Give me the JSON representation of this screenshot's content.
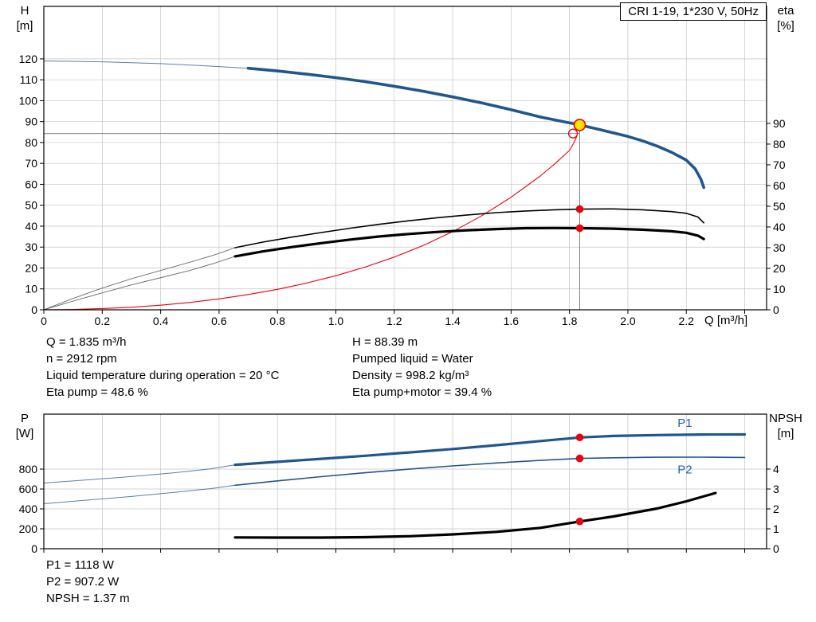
{
  "colors": {
    "curve_blue": "#20568c",
    "label_blue": "#2363ae",
    "red": "#e8000d",
    "marker_yellow": "#ffe600",
    "grid": "#c4c4c4",
    "ref_gray": "#707070",
    "black": "#000000"
  },
  "axis_labels": {
    "top_left": [
      "H",
      "[m]"
    ],
    "top_right": [
      "eta",
      "[%]"
    ],
    "x_axis": "Q [m³/h]",
    "bottom_left": [
      "P",
      "[W]"
    ],
    "bottom_right": [
      "NPSH",
      "[m]"
    ]
  },
  "info": {
    "left": [
      "Q = 1.835 m³/h",
      "n = 2912 rpm",
      "Liquid temperature during operation = 20 °C",
      "Eta pump = 48.6 %"
    ],
    "right": [
      "H = 88.39 m",
      "Pumped liquid = Water",
      "Density = 998.2 kg/m³",
      "Eta pump+motor = 39.4 %"
    ]
  },
  "results": [
    "P1 = 1118 W",
    "P2 = 907.2 W",
    "NPSH = 1.37 m"
  ],
  "chart_data": [
    {
      "id": "chart-top",
      "type": "line",
      "title": "CRI 1-19, 1*230 V, 50Hz",
      "x": {
        "label": "Q [m³/h]",
        "lim": [
          0,
          2.475
        ],
        "ticks": [
          0,
          0.2,
          0.4,
          0.6,
          0.8,
          1.0,
          1.2,
          1.4,
          1.6,
          1.8,
          2.0,
          2.2,
          2.4
        ],
        "tick_labels": [
          "0",
          "0.2",
          "0.4",
          "0.6",
          "0.8",
          "1.0",
          "1.2",
          "1.4",
          "1.6",
          "1.8",
          "2.0",
          "2.2",
          ""
        ],
        "grid": [
          0.2,
          0.4,
          0.6,
          0.8,
          1.0,
          1.2,
          1.4,
          1.6,
          1.8,
          2.0,
          2.2,
          2.4
        ]
      },
      "left": {
        "label": "H [m]",
        "lim": [
          0,
          145.1
        ],
        "ticks": [
          0,
          10,
          20,
          30,
          40,
          50,
          60,
          70,
          80,
          90,
          100,
          110,
          120
        ],
        "tick_labels": [
          "0",
          "10",
          "20",
          "30",
          "40",
          "50",
          "60",
          "70",
          "80",
          "90",
          "100",
          "110",
          "120"
        ]
      },
      "right": {
        "label": "eta [%]",
        "lim": [
          0,
          146.5
        ],
        "ticks": [
          0,
          10,
          20,
          30,
          40,
          50,
          60,
          70,
          80,
          90
        ],
        "tick_labels": [
          "0",
          "10",
          "20",
          "30",
          "40",
          "50",
          "60",
          "70",
          "80",
          "90"
        ]
      },
      "series": [
        {
          "name": "head-curve-lead",
          "axis": "left",
          "color": "#20568c",
          "width": 1,
          "opacity": 0.75,
          "points": [
            [
              0,
              119
            ],
            [
              0.2,
              118.6
            ],
            [
              0.4,
              117.7
            ],
            [
              0.55,
              116.7
            ],
            [
              0.7,
              115.5
            ]
          ]
        },
        {
          "name": "head-curve",
          "axis": "left",
          "color": "#20568c",
          "width": 3.6,
          "points": [
            [
              0.7,
              115.5
            ],
            [
              0.8,
              114.2
            ],
            [
              0.9,
              112.7
            ],
            [
              1.0,
              111.0
            ],
            [
              1.1,
              109.1
            ],
            [
              1.2,
              106.9
            ],
            [
              1.3,
              104.5
            ],
            [
              1.4,
              101.8
            ],
            [
              1.5,
              98.9
            ],
            [
              1.6,
              95.7
            ],
            [
              1.7,
              92.2
            ],
            [
              1.835,
              88.39
            ],
            [
              1.9,
              86.3
            ],
            [
              2.0,
              82.9
            ],
            [
              2.05,
              80.8
            ],
            [
              2.1,
              78.3
            ],
            [
              2.15,
              75.3
            ],
            [
              2.2,
              71.6
            ],
            [
              2.23,
              67.5
            ],
            [
              2.25,
              62.5
            ],
            [
              2.26,
              58.5
            ]
          ]
        },
        {
          "name": "eta-rising-curve",
          "axis": "left",
          "color": "#e8000d",
          "width": 1.1,
          "points": [
            [
              0,
              0
            ],
            [
              0.1,
              0.2
            ],
            [
              0.2,
              0.6
            ],
            [
              0.3,
              1.2
            ],
            [
              0.4,
              2.2
            ],
            [
              0.5,
              3.5
            ],
            [
              0.6,
              5.2
            ],
            [
              0.7,
              7.3
            ],
            [
              0.8,
              9.8
            ],
            [
              0.9,
              12.8
            ],
            [
              1.0,
              16.3
            ],
            [
              1.1,
              20.4
            ],
            [
              1.2,
              25.2
            ],
            [
              1.3,
              30.8
            ],
            [
              1.4,
              37.4
            ],
            [
              1.5,
              45.0
            ],
            [
              1.6,
              53.8
            ],
            [
              1.7,
              64.0
            ],
            [
              1.75,
              69.8
            ],
            [
              1.8,
              76.2
            ],
            [
              1.815,
              79.8
            ],
            [
              1.825,
              83.0
            ]
          ]
        },
        {
          "name": "eta-pump-curve-lead",
          "axis": "right",
          "color": "#555555",
          "width": 0.8,
          "points": [
            [
              0,
              0
            ],
            [
              0.1,
              5.5
            ],
            [
              0.2,
              10.5
            ],
            [
              0.3,
              15.0
            ],
            [
              0.4,
              19.0
            ],
            [
              0.5,
              23.0
            ],
            [
              0.58,
              26.3
            ],
            [
              0.655,
              30.0
            ]
          ]
        },
        {
          "name": "eta-pump-curve",
          "axis": "right",
          "color": "#000000",
          "width": 1.6,
          "points": [
            [
              0.655,
              30.0
            ],
            [
              0.75,
              32.7
            ],
            [
              0.85,
              35.1
            ],
            [
              0.95,
              37.3
            ],
            [
              1.05,
              39.4
            ],
            [
              1.15,
              41.3
            ],
            [
              1.25,
              43.0
            ],
            [
              1.35,
              44.5
            ],
            [
              1.45,
              45.8
            ],
            [
              1.55,
              46.9
            ],
            [
              1.65,
              47.7
            ],
            [
              1.75,
              48.3
            ],
            [
              1.835,
              48.6
            ],
            [
              1.95,
              48.7
            ],
            [
              2.05,
              48.3
            ],
            [
              2.15,
              47.4
            ],
            [
              2.2,
              46.6
            ],
            [
              2.24,
              44.8
            ],
            [
              2.26,
              42.0
            ]
          ]
        },
        {
          "name": "eta-pump-motor-curve-lead",
          "axis": "right",
          "color": "#555555",
          "width": 0.8,
          "points": [
            [
              0,
              0
            ],
            [
              0.1,
              4.2
            ],
            [
              0.2,
              8.2
            ],
            [
              0.3,
              12.0
            ],
            [
              0.4,
              15.5
            ],
            [
              0.5,
              19.0
            ],
            [
              0.58,
              22.3
            ],
            [
              0.655,
              25.8
            ]
          ]
        },
        {
          "name": "eta-pump-motor-curve",
          "axis": "right",
          "color": "#000000",
          "width": 3.2,
          "points": [
            [
              0.655,
              25.8
            ],
            [
              0.75,
              28.2
            ],
            [
              0.85,
              30.3
            ],
            [
              0.95,
              32.2
            ],
            [
              1.05,
              33.9
            ],
            [
              1.15,
              35.4
            ],
            [
              1.25,
              36.6
            ],
            [
              1.35,
              37.6
            ],
            [
              1.45,
              38.4
            ],
            [
              1.55,
              39.0
            ],
            [
              1.65,
              39.4
            ],
            [
              1.75,
              39.5
            ],
            [
              1.835,
              39.4
            ],
            [
              1.95,
              39.2
            ],
            [
              2.05,
              38.7
            ],
            [
              2.15,
              37.9
            ],
            [
              2.2,
              37.2
            ],
            [
              2.24,
              35.8
            ],
            [
              2.26,
              34.2
            ]
          ]
        }
      ],
      "ref_lines": [
        {
          "name": "duty-flow-line",
          "type": "v",
          "x": 1.835,
          "axis": "left",
          "from": 0,
          "to": 88.4,
          "color": "#707070",
          "width": 0.9
        },
        {
          "name": "duty-head-line",
          "type": "h",
          "y": 84.3,
          "axis": "left",
          "from": 0,
          "to": 1.835,
          "color": "#707070",
          "width": 0.9
        }
      ],
      "markers": [
        {
          "name": "duty-point-marker",
          "x": 1.835,
          "y": 88.39,
          "axis": "left",
          "r": 7,
          "fill": "#ffe600",
          "stroke": "#e8000d",
          "stroke_width": 1.6
        },
        {
          "name": "eta-duty-open-marker",
          "x": 1.812,
          "y": 84.3,
          "axis": "left",
          "r": 5.5,
          "fill": "none",
          "stroke": "#e8000d",
          "stroke_width": 1.3
        },
        {
          "name": "eta-pump-duty-dot",
          "x": 1.835,
          "y": 48.6,
          "axis": "right",
          "r": 4.8,
          "fill": "#e8000d"
        },
        {
          "name": "eta-pump-motor-duty-dot",
          "x": 1.835,
          "y": 39.4,
          "axis": "right",
          "r": 4.8,
          "fill": "#e8000d"
        }
      ]
    },
    {
      "id": "chart-bottom",
      "type": "line",
      "title": "",
      "x": {
        "label": "Q [m³/h]",
        "lim": [
          0,
          2.475
        ],
        "ticks": [
          0,
          0.2,
          0.4,
          0.6,
          0.8,
          1.0,
          1.2,
          1.4,
          1.6,
          1.8,
          2.0,
          2.2,
          2.4
        ],
        "tick_labels": [
          "",
          "",
          "",
          "",
          "",
          "",
          "",
          "",
          "",
          "",
          "",
          "",
          ""
        ],
        "grid": [
          0.2,
          0.4,
          0.6,
          0.8,
          1.0,
          1.2,
          1.4,
          1.6,
          1.8,
          2.0,
          2.2,
          2.4
        ]
      },
      "left": {
        "label": "P [W]",
        "lim": [
          0,
          1352
        ],
        "ticks": [
          0,
          200,
          400,
          600,
          800
        ],
        "tick_labels": [
          "0",
          "200",
          "400",
          "600",
          "800"
        ]
      },
      "right": {
        "label": "NPSH [m]",
        "lim": [
          0,
          6.76
        ],
        "ticks": [
          0,
          1,
          2,
          3,
          4
        ],
        "tick_labels": [
          "0",
          "1",
          "2",
          "3",
          "4"
        ]
      },
      "series": [
        {
          "name": "p1-curve-lead",
          "axis": "left",
          "color": "#20568c",
          "width": 1,
          "opacity": 0.75,
          "points": [
            [
              0,
              660
            ],
            [
              0.15,
              692
            ],
            [
              0.3,
              725
            ],
            [
              0.45,
              764
            ],
            [
              0.57,
              802
            ],
            [
              0.655,
              843
            ]
          ]
        },
        {
          "name": "p1-curve",
          "axis": "left",
          "color": "#20568c",
          "width": 3.2,
          "points": [
            [
              0.655,
              843
            ],
            [
              0.8,
              873
            ],
            [
              0.95,
              903
            ],
            [
              1.1,
              934
            ],
            [
              1.25,
              967
            ],
            [
              1.4,
              1002
            ],
            [
              1.55,
              1040
            ],
            [
              1.7,
              1082
            ],
            [
              1.835,
              1118
            ],
            [
              1.95,
              1133
            ],
            [
              2.1,
              1142
            ],
            [
              2.25,
              1147
            ],
            [
              2.4,
              1148
            ]
          ]
        },
        {
          "name": "p2-curve-lead",
          "axis": "left",
          "color": "#20568c",
          "width": 1,
          "opacity": 0.75,
          "points": [
            [
              0,
              452
            ],
            [
              0.15,
              489
            ],
            [
              0.3,
              525
            ],
            [
              0.45,
              567
            ],
            [
              0.57,
              603
            ],
            [
              0.655,
              638
            ]
          ]
        },
        {
          "name": "p2-curve",
          "axis": "left",
          "color": "#20568c",
          "width": 1.6,
          "points": [
            [
              0.655,
              638
            ],
            [
              0.8,
              682
            ],
            [
              0.95,
              724
            ],
            [
              1.1,
              763
            ],
            [
              1.25,
              799
            ],
            [
              1.4,
              832
            ],
            [
              1.55,
              862
            ],
            [
              1.7,
              887
            ],
            [
              1.835,
              907.2
            ],
            [
              1.95,
              914
            ],
            [
              2.1,
              919
            ],
            [
              2.25,
              920
            ],
            [
              2.4,
              917
            ]
          ]
        },
        {
          "name": "npsh-curve",
          "axis": "right",
          "color": "#000000",
          "width": 3.2,
          "points": [
            [
              0.655,
              0.57
            ],
            [
              0.8,
              0.56
            ],
            [
              0.95,
              0.56
            ],
            [
              1.1,
              0.58
            ],
            [
              1.25,
              0.63
            ],
            [
              1.4,
              0.72
            ],
            [
              1.55,
              0.85
            ],
            [
              1.7,
              1.05
            ],
            [
              1.835,
              1.37
            ],
            [
              1.95,
              1.62
            ],
            [
              2.1,
              2.02
            ],
            [
              2.2,
              2.38
            ],
            [
              2.3,
              2.8
            ]
          ]
        }
      ],
      "ref_lines": [],
      "markers": [
        {
          "name": "p1-duty-dot",
          "x": 1.835,
          "y": 1118,
          "axis": "left",
          "r": 4.8,
          "fill": "#e8000d"
        },
        {
          "name": "p2-duty-dot",
          "x": 1.835,
          "y": 907.2,
          "axis": "left",
          "r": 4.8,
          "fill": "#e8000d"
        },
        {
          "name": "npsh-duty-dot",
          "x": 1.835,
          "y": 1.37,
          "axis": "right",
          "r": 4.8,
          "fill": "#e8000d"
        }
      ],
      "annotations": [
        {
          "name": "p1-curve-label",
          "text": "P1",
          "x": 2.17,
          "y": 1225,
          "axis": "left",
          "color": "#2363ae"
        },
        {
          "name": "p2-curve-label",
          "text": "P2",
          "x": 2.17,
          "y": 755,
          "axis": "left",
          "color": "#2363ae"
        }
      ]
    }
  ]
}
